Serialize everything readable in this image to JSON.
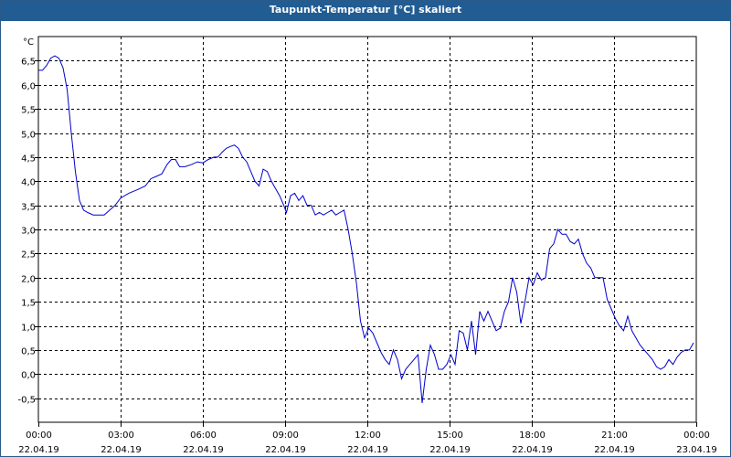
{
  "window": {
    "title": "Taupunkt-Temperatur [°C] skaliert"
  },
  "chart_data": {
    "type": "line",
    "title": "Taupunkt-Temperatur [°C] skaliert",
    "ylabel": "°C",
    "xlabel": "",
    "ylim": [
      -1.0,
      7.0
    ],
    "xlim": [
      0,
      24
    ],
    "grid": true,
    "line_color": "#0000cc",
    "y_ticks": [
      "6,5",
      "6,0",
      "5,5",
      "5,0",
      "4,5",
      "4,0",
      "3,5",
      "3,0",
      "2,5",
      "2,0",
      "1,5",
      "1,0",
      "0,5",
      "0,0",
      "-0,5"
    ],
    "y_tick_values": [
      6.5,
      6.0,
      5.5,
      5.0,
      4.5,
      4.0,
      3.5,
      3.0,
      2.5,
      2.0,
      1.5,
      1.0,
      0.5,
      0.0,
      -0.5
    ],
    "x_ticks": [
      {
        "time": "00:00",
        "date": "22.04.19",
        "hour": 0
      },
      {
        "time": "03:00",
        "date": "22.04.19",
        "hour": 3
      },
      {
        "time": "06:00",
        "date": "22.04.19",
        "hour": 6
      },
      {
        "time": "09:00",
        "date": "22.04.19",
        "hour": 9
      },
      {
        "time": "12:00",
        "date": "22.04.19",
        "hour": 12
      },
      {
        "time": "15:00",
        "date": "22.04.19",
        "hour": 15
      },
      {
        "time": "18:00",
        "date": "22.04.19",
        "hour": 18
      },
      {
        "time": "21:00",
        "date": "22.04.19",
        "hour": 21
      },
      {
        "time": "00:00",
        "date": "23.04.19",
        "hour": 24
      }
    ],
    "series": [
      {
        "points": [
          [
            0.0,
            6.3
          ],
          [
            0.15,
            6.3
          ],
          [
            0.3,
            6.4
          ],
          [
            0.45,
            6.55
          ],
          [
            0.6,
            6.6
          ],
          [
            0.75,
            6.55
          ],
          [
            0.9,
            6.35
          ],
          [
            1.05,
            5.9
          ],
          [
            1.2,
            5.0
          ],
          [
            1.35,
            4.2
          ],
          [
            1.5,
            3.6
          ],
          [
            1.65,
            3.4
          ],
          [
            1.8,
            3.35
          ],
          [
            2.0,
            3.3
          ],
          [
            2.2,
            3.3
          ],
          [
            2.4,
            3.3
          ],
          [
            2.6,
            3.4
          ],
          [
            2.8,
            3.5
          ],
          [
            3.0,
            3.65
          ],
          [
            3.3,
            3.75
          ],
          [
            3.6,
            3.82
          ],
          [
            3.9,
            3.9
          ],
          [
            4.1,
            4.05
          ],
          [
            4.3,
            4.1
          ],
          [
            4.5,
            4.15
          ],
          [
            4.7,
            4.35
          ],
          [
            4.85,
            4.45
          ],
          [
            5.0,
            4.45
          ],
          [
            5.15,
            4.3
          ],
          [
            5.35,
            4.3
          ],
          [
            5.6,
            4.35
          ],
          [
            5.8,
            4.4
          ],
          [
            6.0,
            4.38
          ],
          [
            6.2,
            4.45
          ],
          [
            6.4,
            4.5
          ],
          [
            6.55,
            4.5
          ],
          [
            6.7,
            4.6
          ],
          [
            6.85,
            4.68
          ],
          [
            7.0,
            4.72
          ],
          [
            7.15,
            4.75
          ],
          [
            7.3,
            4.68
          ],
          [
            7.45,
            4.5
          ],
          [
            7.6,
            4.4
          ],
          [
            7.75,
            4.2
          ],
          [
            7.9,
            4.0
          ],
          [
            8.05,
            3.9
          ],
          [
            8.2,
            4.25
          ],
          [
            8.35,
            4.2
          ],
          [
            8.5,
            4.0
          ],
          [
            8.65,
            3.85
          ],
          [
            8.8,
            3.7
          ],
          [
            8.95,
            3.5
          ],
          [
            9.05,
            3.35
          ],
          [
            9.2,
            3.7
          ],
          [
            9.35,
            3.75
          ],
          [
            9.5,
            3.6
          ],
          [
            9.65,
            3.7
          ],
          [
            9.8,
            3.5
          ],
          [
            9.95,
            3.5
          ],
          [
            10.1,
            3.3
          ],
          [
            10.25,
            3.35
          ],
          [
            10.4,
            3.3
          ],
          [
            10.55,
            3.35
          ],
          [
            10.7,
            3.4
          ],
          [
            10.85,
            3.3
          ],
          [
            11.0,
            3.35
          ],
          [
            11.15,
            3.4
          ],
          [
            11.3,
            3.0
          ],
          [
            11.45,
            2.5
          ],
          [
            11.6,
            1.9
          ],
          [
            11.75,
            1.1
          ],
          [
            11.9,
            0.75
          ],
          [
            12.05,
            0.95
          ],
          [
            12.2,
            0.85
          ],
          [
            12.35,
            0.65
          ],
          [
            12.5,
            0.45
          ],
          [
            12.65,
            0.3
          ],
          [
            12.8,
            0.2
          ],
          [
            12.95,
            0.5
          ],
          [
            13.1,
            0.3
          ],
          [
            13.25,
            -0.1
          ],
          [
            13.4,
            0.1
          ],
          [
            13.55,
            0.2
          ],
          [
            13.7,
            0.3
          ],
          [
            13.85,
            0.4
          ],
          [
            14.0,
            -0.6
          ],
          [
            14.15,
            0.1
          ],
          [
            14.3,
            0.6
          ],
          [
            14.45,
            0.4
          ],
          [
            14.6,
            0.1
          ],
          [
            14.75,
            0.1
          ],
          [
            14.9,
            0.2
          ],
          [
            15.05,
            0.4
          ],
          [
            15.2,
            0.2
          ],
          [
            15.35,
            0.9
          ],
          [
            15.5,
            0.85
          ],
          [
            15.65,
            0.5
          ],
          [
            15.8,
            1.1
          ],
          [
            15.95,
            0.4
          ],
          [
            16.1,
            1.3
          ],
          [
            16.25,
            1.1
          ],
          [
            16.4,
            1.3
          ],
          [
            16.55,
            1.1
          ],
          [
            16.7,
            0.9
          ],
          [
            16.85,
            0.95
          ],
          [
            17.0,
            1.3
          ],
          [
            17.15,
            1.5
          ],
          [
            17.3,
            2.0
          ],
          [
            17.45,
            1.7
          ],
          [
            17.6,
            1.05
          ],
          [
            17.75,
            1.5
          ],
          [
            17.9,
            2.0
          ],
          [
            18.05,
            1.85
          ],
          [
            18.2,
            2.1
          ],
          [
            18.35,
            1.95
          ],
          [
            18.5,
            2.0
          ],
          [
            18.65,
            2.6
          ],
          [
            18.8,
            2.7
          ],
          [
            18.95,
            3.0
          ],
          [
            19.1,
            2.9
          ],
          [
            19.25,
            2.9
          ],
          [
            19.4,
            2.75
          ],
          [
            19.55,
            2.7
          ],
          [
            19.7,
            2.8
          ],
          [
            19.85,
            2.5
          ],
          [
            20.0,
            2.3
          ],
          [
            20.15,
            2.2
          ],
          [
            20.3,
            2.0
          ],
          [
            20.45,
            2.0
          ],
          [
            20.6,
            2.0
          ],
          [
            20.75,
            1.55
          ],
          [
            20.9,
            1.35
          ],
          [
            21.05,
            1.15
          ],
          [
            21.2,
            1.0
          ],
          [
            21.35,
            0.9
          ],
          [
            21.5,
            1.2
          ],
          [
            21.65,
            0.9
          ],
          [
            21.8,
            0.75
          ],
          [
            21.95,
            0.6
          ],
          [
            22.1,
            0.5
          ],
          [
            22.25,
            0.4
          ],
          [
            22.4,
            0.3
          ],
          [
            22.55,
            0.15
          ],
          [
            22.7,
            0.1
          ],
          [
            22.85,
            0.15
          ],
          [
            23.0,
            0.3
          ],
          [
            23.15,
            0.2
          ],
          [
            23.3,
            0.35
          ],
          [
            23.45,
            0.45
          ],
          [
            23.6,
            0.5
          ],
          [
            23.75,
            0.5
          ],
          [
            23.9,
            0.65
          ]
        ]
      }
    ]
  }
}
